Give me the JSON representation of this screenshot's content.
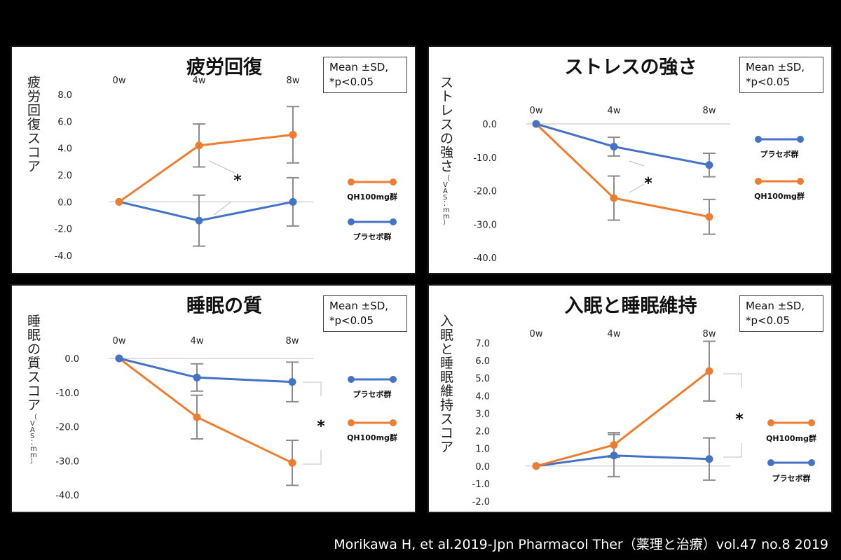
{
  "colors": {
    "placebo": "#4472c4",
    "qh100": "#ed7d31",
    "errorbar": "#8c8c8c",
    "axis": "#bfbfbf"
  },
  "citation": "Morikawa H, et al.2019-Jpn Pharmacol Ther（薬理と治療）vol.47 no.8 2019",
  "chart_data": [
    {
      "type": "line",
      "title": "疲労回復",
      "ylabel": "疲労回復スコア",
      "ylabel_sub": "",
      "note": [
        "Mean ±SD,",
        "*p<0.05"
      ],
      "categories": [
        "0w",
        "4w",
        "8w"
      ],
      "yticks": [
        8.0,
        6.0,
        4.0,
        2.0,
        0.0,
        -2.0,
        -4.0
      ],
      "ytick_labels": [
        "8.0",
        "6.0",
        "4.0",
        "2.0",
        "0.0",
        "-2.0",
        "-4.0"
      ],
      "ylim": [
        -4.0,
        8.0
      ],
      "significance": "*",
      "series": [
        {
          "name": "QH100mg群",
          "color_key": "qh100",
          "values": [
            0.0,
            4.2,
            5.0
          ],
          "sd": [
            0,
            1.6,
            2.1
          ]
        },
        {
          "name": "プラセボ群",
          "color_key": "placebo",
          "values": [
            0.0,
            -1.4,
            0.0
          ],
          "sd": [
            0,
            1.9,
            1.8
          ]
        }
      ]
    },
    {
      "type": "line",
      "title": "ストレスの強さ",
      "ylabel": "ストレスの強さ",
      "ylabel_sub": "（VAS：mm）",
      "note": [
        "Mean ±SD,",
        "*p<0.05"
      ],
      "categories": [
        "0w",
        "4w",
        "8w"
      ],
      "yticks": [
        0,
        -10,
        -20,
        -30,
        -40
      ],
      "ytick_labels": [
        "0.0",
        "-10.0",
        "-20.0",
        "-30.0",
        "-40.0"
      ],
      "ylim": [
        -40,
        0
      ],
      "significance": "*",
      "series": [
        {
          "name": "プラセボ群",
          "color_key": "placebo",
          "values": [
            0.0,
            -6.8,
            -12.3
          ],
          "sd": [
            0,
            2.8,
            3.5
          ]
        },
        {
          "name": "QH100mg群",
          "color_key": "qh100",
          "values": [
            0.0,
            -22.2,
            -27.8
          ],
          "sd": [
            0,
            6.6,
            5.2
          ]
        }
      ]
    },
    {
      "type": "line",
      "title": "睡眠の質",
      "ylabel": "睡眠の質スコア",
      "ylabel_sub": "（VAS：mm）",
      "note": [
        "Mean ±SD,",
        "*p<0.05"
      ],
      "categories": [
        "0w",
        "4w",
        "8w"
      ],
      "yticks": [
        0,
        -10,
        -20,
        -30,
        -40
      ],
      "ytick_labels": [
        "0.0",
        "-10.0",
        "-20.0",
        "-30.0",
        "-40.0"
      ],
      "ylim": [
        -40,
        0
      ],
      "significance": "*",
      "series": [
        {
          "name": "プラセボ群",
          "color_key": "placebo",
          "values": [
            0.0,
            -5.6,
            -6.9
          ],
          "sd": [
            0,
            4.0,
            5.8
          ]
        },
        {
          "name": "QH100mg群",
          "color_key": "qh100",
          "values": [
            0.0,
            -17.2,
            -30.6
          ],
          "sd": [
            0,
            6.4,
            6.6
          ]
        }
      ]
    },
    {
      "type": "line",
      "title": "入眠と睡眠維持",
      "ylabel": "入眠と睡眠維持スコア",
      "ylabel_sub": "",
      "note": [
        "Mean ±SD,",
        "*p<0.05"
      ],
      "categories": [
        "0w",
        "4w",
        "8w"
      ],
      "yticks": [
        7.0,
        6.0,
        5.0,
        4.0,
        3.0,
        2.0,
        1.0,
        0.0,
        -1.0,
        -2.0
      ],
      "ytick_labels": [
        "7.0",
        "6.0",
        "5.0",
        "4.0",
        "3.0",
        "2.0",
        "1.0",
        "0.0",
        "-1.0",
        "-2.0"
      ],
      "ylim": [
        -2.0,
        7.0
      ],
      "significance": "*",
      "series": [
        {
          "name": "QH100mg群",
          "color_key": "qh100",
          "values": [
            0.0,
            1.2,
            5.4
          ],
          "sd": [
            0,
            0.7,
            1.7
          ]
        },
        {
          "name": "プラセボ群",
          "color_key": "placebo",
          "values": [
            0.0,
            0.6,
            0.4
          ],
          "sd": [
            0,
            1.2,
            1.2
          ]
        }
      ]
    }
  ]
}
